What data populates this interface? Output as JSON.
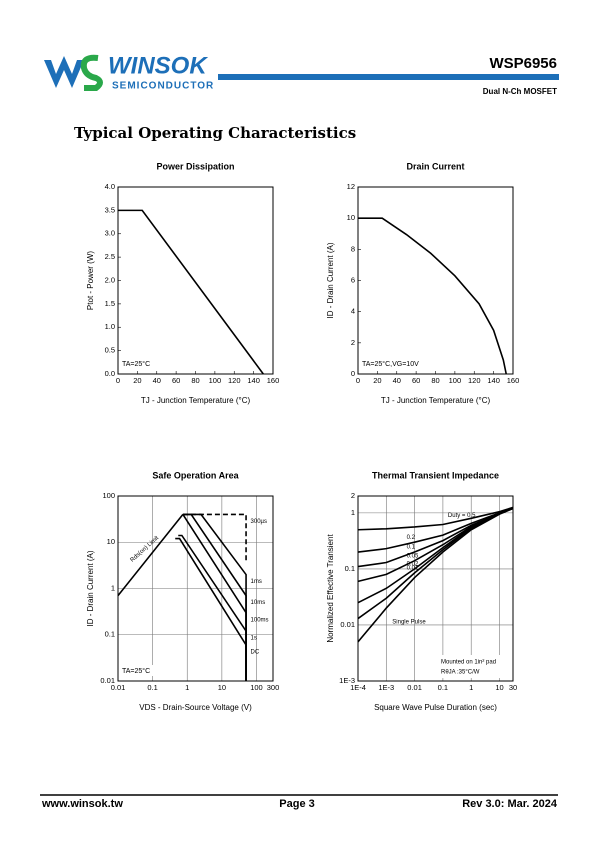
{
  "header": {
    "logo": "WINSOK",
    "logo_sub": "SEMICONDUCTOR",
    "part": "WSP6956",
    "desc": "Dual N-Ch MOSFET"
  },
  "section_title": "Typical Operating Characteristics",
  "chart_data": [
    {
      "type": "line",
      "title": "Power Dissipation",
      "x_label": "TJ - Junction Temperature (°C)",
      "y_label": "Ptot - Power (W)",
      "x": [
        0,
        25,
        150
      ],
      "values": [
        3.5,
        3.5,
        0
      ],
      "color": "#000000",
      "xlim": [
        0,
        160
      ],
      "xticks": [
        0,
        20,
        40,
        60,
        80,
        100,
        120,
        140,
        160
      ],
      "ylim": [
        0,
        4
      ],
      "yticks": [
        {
          "value": 0,
          "label": "0.0"
        },
        0.5,
        {
          "value": 1,
          "label": "1.0"
        },
        1.5,
        {
          "value": 2,
          "label": "2.0"
        },
        2.5,
        {
          "value": 3,
          "label": "3.0"
        },
        3.5,
        {
          "value": 4,
          "label": "4.0"
        }
      ],
      "grid": false,
      "annotations": [
        "TA=25°C"
      ]
    },
    {
      "type": "line",
      "title": "Drain Current",
      "x_label": "TJ - Junction Temperature (°C)",
      "y_label": "ID - Drain Current (A)",
      "x": [
        0,
        25,
        50,
        75,
        100,
        125,
        140,
        150,
        153
      ],
      "values": [
        10,
        10,
        8.95,
        7.75,
        6.3,
        4.5,
        2.8,
        0.9,
        0
      ],
      "color": "#000000",
      "xlim": [
        0,
        160
      ],
      "xticks": [
        0,
        20,
        40,
        60,
        80,
        100,
        120,
        140,
        160
      ],
      "ylim": [
        0,
        12
      ],
      "yticks": [
        0,
        2,
        4,
        6,
        8,
        10,
        12
      ],
      "grid": false,
      "annotations": [
        "TA=25°C,VG=10V"
      ]
    },
    {
      "type": "line",
      "title": "Safe Operation Area",
      "x_label": "VDS - Drain-Source Voltage (V)",
      "y_label": "ID - Drain Current (A)",
      "log_x": true,
      "log_y": true,
      "grid": true,
      "xlim": [
        0.01,
        300
      ],
      "xticks": [
        0.01,
        0.1,
        1,
        10,
        100,
        300
      ],
      "ylim": [
        0.01,
        100
      ],
      "yticks": [
        0.01,
        0.1,
        1,
        10,
        100
      ],
      "series": [
        {
          "name": "Rds(on) Limit",
          "color": "#000000",
          "x": [
            0.01,
            0.75
          ],
          "values": [
            0.7,
            40
          ]
        },
        {
          "name": "300µs",
          "color": "#000000",
          "dash": true,
          "x": [
            0.75,
            50,
            50
          ],
          "values": [
            40,
            40,
            4
          ]
        },
        {
          "name": "1ms",
          "color": "#000000",
          "x": [
            0.75,
            2.5,
            50,
            50
          ],
          "values": [
            40,
            40,
            2,
            0.01
          ]
        },
        {
          "name": "10ms",
          "color": "#000000",
          "x": [
            0.75,
            1.3,
            50,
            50
          ],
          "values": [
            40,
            40,
            0.7,
            0.01
          ]
        },
        {
          "name": "100ms",
          "color": "#000000",
          "x": [
            0.75,
            50,
            50
          ],
          "values": [
            40,
            0.3,
            0.01
          ]
        },
        {
          "name": "1s",
          "color": "#000000",
          "x": [
            0.55,
            0.7,
            50,
            50
          ],
          "values": [
            14,
            14,
            0.12,
            0.01
          ]
        },
        {
          "name": "DC",
          "color": "#000000",
          "x": [
            0.45,
            0.6,
            50,
            50
          ],
          "values": [
            12,
            12,
            0.06,
            0.01
          ]
        }
      ],
      "annotations": [
        "TA=25°C"
      ]
    },
    {
      "type": "line",
      "title": "Thermal Transient Impedance",
      "x_label": "Square Wave Pulse Duration (sec)",
      "y_label": "Normalized Effective Transient",
      "log_x": true,
      "log_y": true,
      "grid": true,
      "xlim": [
        0.0001,
        30
      ],
      "xticks": [
        {
          "value": 0.0001,
          "label": "1E-4"
        },
        {
          "value": 0.001,
          "label": "1E-3"
        },
        0.01,
        0.1,
        1,
        10,
        30
      ],
      "ylim": [
        0.001,
        2
      ],
      "yticks": [
        {
          "value": 0.001,
          "label": "1E-3"
        },
        0.01,
        0.1,
        1,
        2
      ],
      "series": [
        {
          "name": "Duty = 0.5",
          "color": "#000000",
          "x": [
            0.0001,
            0.001,
            0.01,
            0.1,
            1,
            10,
            30
          ],
          "values": [
            0.5,
            0.52,
            0.56,
            0.62,
            0.8,
            1.05,
            1.25
          ]
        },
        {
          "name": "0.2",
          "color": "#000000",
          "x": [
            0.0001,
            0.001,
            0.01,
            0.1,
            1,
            10,
            30
          ],
          "values": [
            0.2,
            0.23,
            0.3,
            0.4,
            0.65,
            1.0,
            1.22
          ]
        },
        {
          "name": "0.1",
          "color": "#000000",
          "x": [
            0.0001,
            0.001,
            0.01,
            0.1,
            1,
            10,
            30
          ],
          "values": [
            0.11,
            0.13,
            0.2,
            0.32,
            0.6,
            0.98,
            1.2
          ]
        },
        {
          "name": "0.05",
          "color": "#000000",
          "x": [
            0.0001,
            0.001,
            0.01,
            0.1,
            1,
            10,
            30
          ],
          "values": [
            0.06,
            0.08,
            0.14,
            0.27,
            0.57,
            0.97,
            1.2
          ]
        },
        {
          "name": "0.02",
          "color": "#000000",
          "x": [
            0.0001,
            0.001,
            0.01,
            0.1,
            1,
            10,
            30
          ],
          "values": [
            0.025,
            0.045,
            0.1,
            0.24,
            0.55,
            0.96,
            1.2
          ]
        },
        {
          "name": "0.01",
          "color": "#000000",
          "x": [
            0.0001,
            0.001,
            0.01,
            0.1,
            1,
            10,
            30
          ],
          "values": [
            0.013,
            0.03,
            0.085,
            0.22,
            0.53,
            0.96,
            1.2
          ]
        },
        {
          "name": "Single Pulse",
          "color": "#000000",
          "x": [
            0.0001,
            0.001,
            0.01,
            0.1,
            1,
            10,
            30
          ],
          "values": [
            0.005,
            0.02,
            0.07,
            0.2,
            0.5,
            0.95,
            1.2
          ]
        }
      ],
      "annotations": [
        "Mounted on 1in² pad",
        "RθJA :35°C/W"
      ]
    }
  ],
  "footer": {
    "site": "www.winsok.tw",
    "page": "Page 3",
    "rev": "Rev 3.0: Mar. 2024"
  }
}
